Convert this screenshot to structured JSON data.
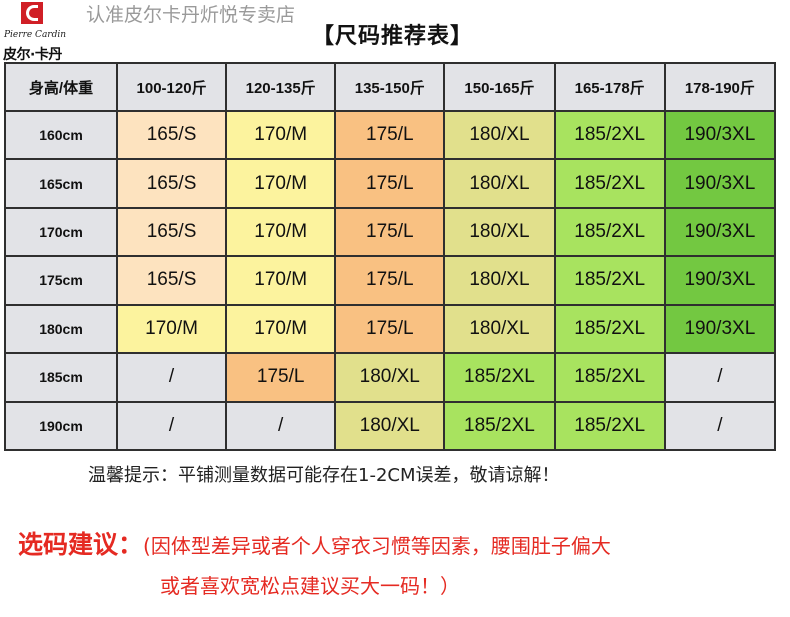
{
  "brand": {
    "script_name": "Pierre Cardin",
    "cn_name": "皮尔·卡丹",
    "colors": {
      "logo_red": "#d01f26"
    }
  },
  "watermark": "认准皮尔卡丹炘悦专卖店",
  "title": "【尺码推荐表】",
  "table": {
    "corner_label": "身高/体重",
    "weight_headers": [
      "100-120斤",
      "120-135斤",
      "135-150斤",
      "150-165斤",
      "165-178斤",
      "178-190斤"
    ],
    "rows": [
      {
        "height": "160cm",
        "cells": [
          "165/S",
          "170/M",
          "175/L",
          "180/XL",
          "185/2XL",
          "190/3XL"
        ]
      },
      {
        "height": "165cm",
        "cells": [
          "165/S",
          "170/M",
          "175/L",
          "180/XL",
          "185/2XL",
          "190/3XL"
        ]
      },
      {
        "height": "170cm",
        "cells": [
          "165/S",
          "170/M",
          "175/L",
          "180/XL",
          "185/2XL",
          "190/3XL"
        ]
      },
      {
        "height": "175cm",
        "cells": [
          "165/S",
          "170/M",
          "175/L",
          "180/XL",
          "185/2XL",
          "190/3XL"
        ]
      },
      {
        "height": "180cm",
        "cells": [
          "170/M",
          "170/M",
          "175/L",
          "180/XL",
          "185/2XL",
          "190/3XL"
        ]
      },
      {
        "height": "185cm",
        "cells": [
          "/",
          "175/L",
          "180/XL",
          "185/2XL",
          "185/2XL",
          "/"
        ]
      },
      {
        "height": "190cm",
        "cells": [
          "/",
          "/",
          "180/XL",
          "185/2XL",
          "185/2XL",
          "/"
        ]
      }
    ],
    "size_colors": {
      "S": "#fde3bf",
      "M": "#fcf39e",
      "L": "#f9c182",
      "XL": "#e1e08c",
      "2XL": "#a8e35f",
      "3XL": "#73c841",
      "/": "#e2e3e7"
    }
  },
  "notice": "温馨提示：平铺测量数据可能存在1-2CM误差，敬请谅解！",
  "suggestion": {
    "heading": "选码建议：",
    "line1": "(因体型差异或者个人穿衣习惯等因素，腰围肚子偏大",
    "line2": "或者喜欢宽松点建议买大一码！）"
  }
}
